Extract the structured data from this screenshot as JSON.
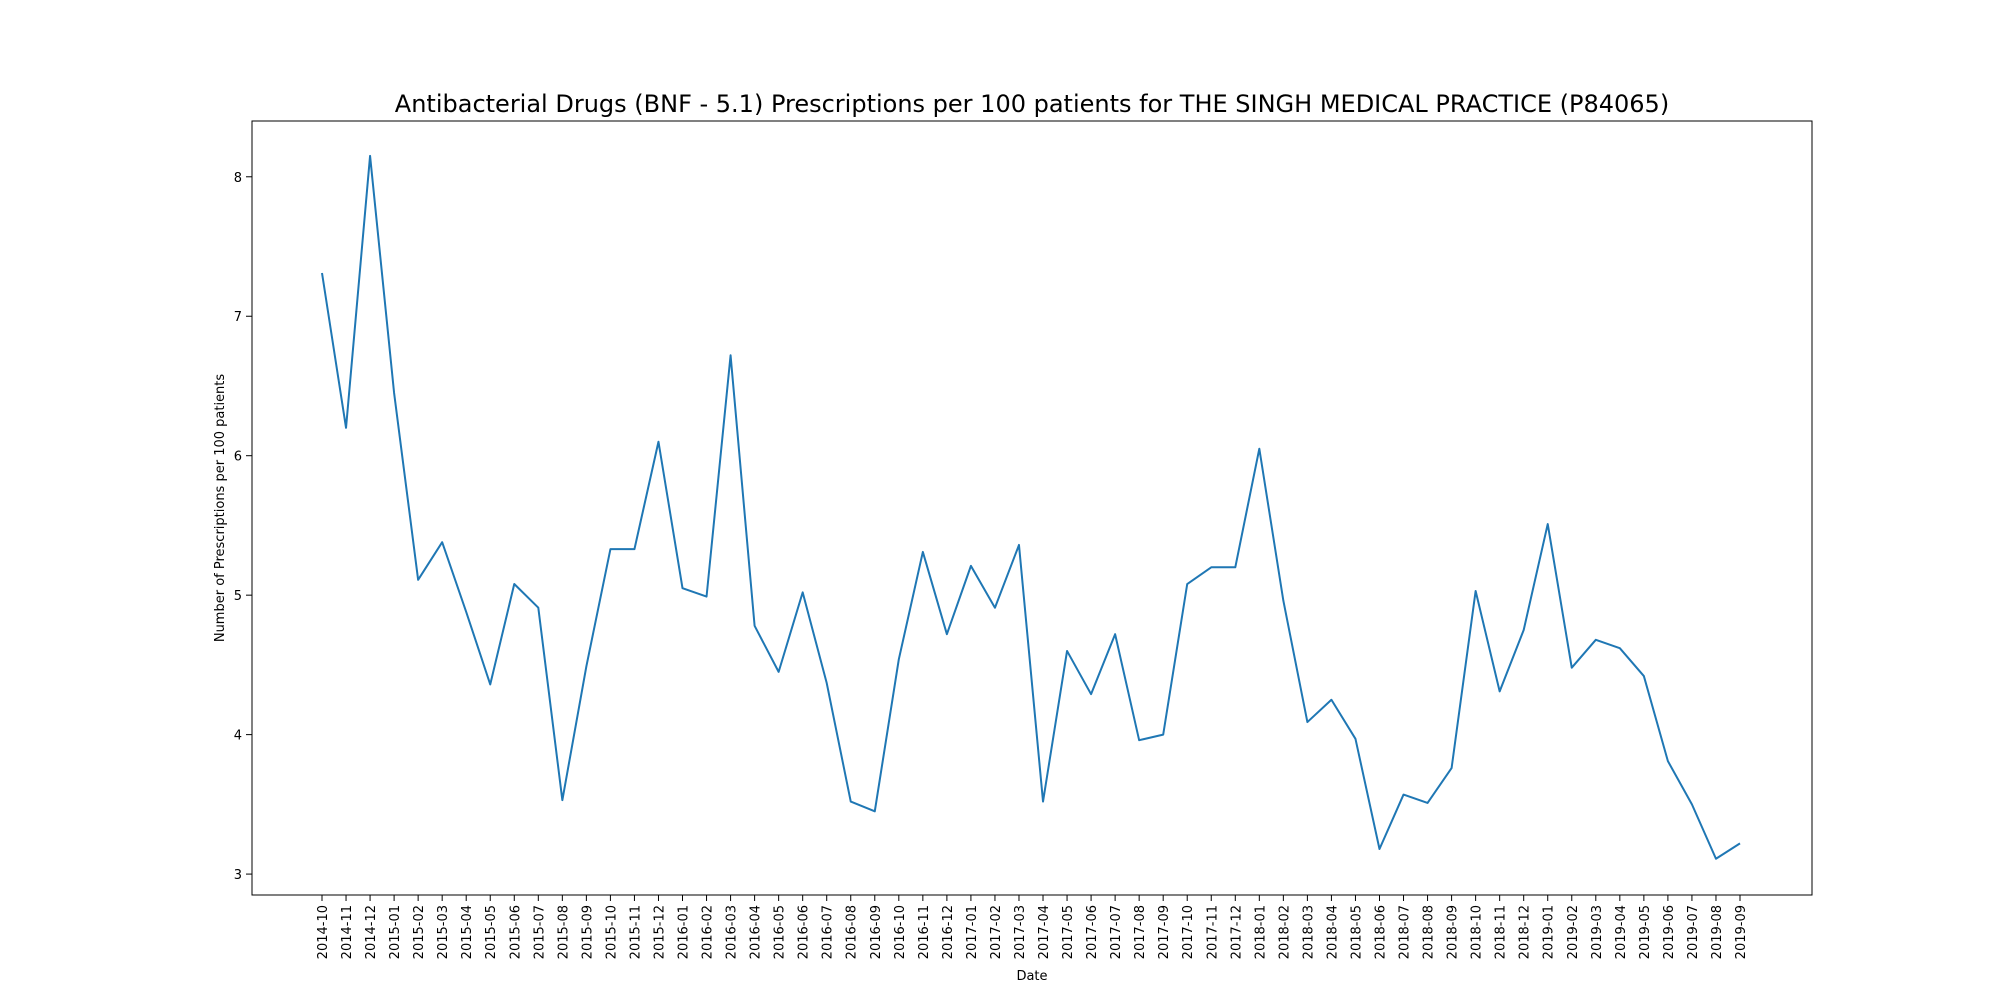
{
  "chart_data": {
    "type": "line",
    "title": "Antibacterial Drugs (BNF - 5.1) Prescriptions per 100 patients for THE SINGH MEDICAL PRACTICE (P84065)",
    "xlabel": "Date",
    "ylabel": "Number of Prescriptions per 100 patients",
    "ylim": [
      2.85,
      8.4
    ],
    "yticks": [
      3,
      4,
      5,
      6,
      7,
      8
    ],
    "grid": false,
    "color": "#1f77b4",
    "x": [
      "2014-10",
      "2014-11",
      "2014-12",
      "2015-01",
      "2015-02",
      "2015-03",
      "2015-04",
      "2015-05",
      "2015-06",
      "2015-07",
      "2015-08",
      "2015-09",
      "2015-10",
      "2015-11",
      "2015-12",
      "2016-01",
      "2016-02",
      "2016-03",
      "2016-04",
      "2016-05",
      "2016-06",
      "2016-07",
      "2016-08",
      "2016-09",
      "2016-10",
      "2016-11",
      "2016-12",
      "2017-01",
      "2017-02",
      "2017-03",
      "2017-04",
      "2017-05",
      "2017-06",
      "2017-07",
      "2017-08",
      "2017-09",
      "2017-10",
      "2017-11",
      "2017-12",
      "2018-01",
      "2018-02",
      "2018-03",
      "2018-04",
      "2018-05",
      "2018-06",
      "2018-07",
      "2018-08",
      "2018-09",
      "2018-10",
      "2018-11",
      "2018-12",
      "2019-01",
      "2019-02",
      "2019-03",
      "2019-04",
      "2019-05",
      "2019-06",
      "2019-07",
      "2019-08",
      "2019-09"
    ],
    "series": [
      {
        "values": [
          7.31,
          6.2,
          8.15,
          6.45,
          5.11,
          5.38,
          4.88,
          4.36,
          5.08,
          4.91,
          3.53,
          4.49,
          5.33,
          5.33,
          6.1,
          5.05,
          4.99,
          6.72,
          4.78,
          4.45,
          5.02,
          4.37,
          3.52,
          3.45,
          4.54,
          5.31,
          4.72,
          5.21,
          4.91,
          5.36,
          3.52,
          4.6,
          4.29,
          4.72,
          3.96,
          4.0,
          5.08,
          5.2,
          5.2,
          6.05,
          4.96,
          4.09,
          4.25,
          3.97,
          3.18,
          3.57,
          3.51,
          3.76,
          5.03,
          4.31,
          4.75,
          5.51,
          4.48,
          4.68,
          4.62,
          4.42,
          3.81,
          3.5,
          3.11,
          3.22
        ]
      }
    ]
  }
}
